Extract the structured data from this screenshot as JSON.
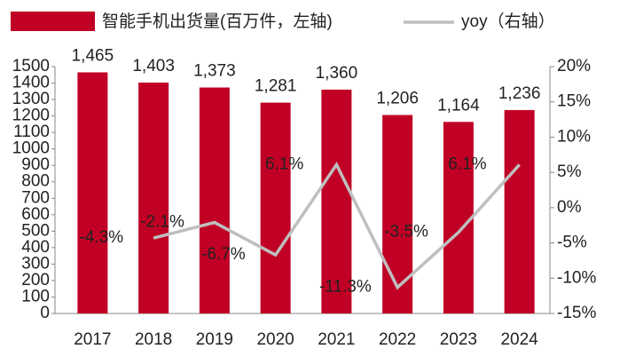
{
  "chart_data": {
    "type": "bar_line",
    "categories": [
      "2017",
      "2018",
      "2019",
      "2020",
      "2021",
      "2022",
      "2023",
      "2024"
    ],
    "series": [
      {
        "name": "智能手机出货量(百万件，左轴)",
        "color": "#c00024",
        "type": "bar",
        "values": [
          1465,
          1403,
          1373,
          1281,
          1360,
          1206,
          1164,
          1236
        ],
        "value_labels": [
          "1,465",
          "1,403",
          "1,373",
          "1,281",
          "1,360",
          "1,206",
          "1,164",
          "1,236"
        ]
      },
      {
        "name": "yoy（右轴）",
        "color": "#bfbfbf",
        "type": "line",
        "axis": "y2",
        "values": [
          null,
          -4.3,
          -2.1,
          -6.7,
          6.1,
          -11.3,
          -3.5,
          6.1
        ],
        "value_labels": [
          null,
          "-4.3%",
          "-2.1%",
          "-6.7%",
          "6.1%",
          "-11.3%",
          "-3.5%",
          "6.1%"
        ]
      }
    ],
    "ylim": [
      0,
      1500
    ],
    "yticks": [
      0,
      100,
      200,
      300,
      400,
      500,
      600,
      700,
      800,
      900,
      1000,
      1100,
      1200,
      1300,
      1400,
      1500
    ],
    "y2lim": [
      -15,
      20
    ],
    "y2ticks": [
      {
        "value": -15,
        "label": "-15%"
      },
      {
        "value": -10,
        "label": "-10%"
      },
      {
        "value": -5,
        "label": "-5%"
      },
      {
        "value": 0,
        "label": "0%"
      },
      {
        "value": 5,
        "label": "5%"
      },
      {
        "value": 10,
        "label": "10%"
      },
      {
        "value": 15,
        "label": "15%"
      },
      {
        "value": 20,
        "label": "20%"
      }
    ],
    "legend": "top"
  }
}
